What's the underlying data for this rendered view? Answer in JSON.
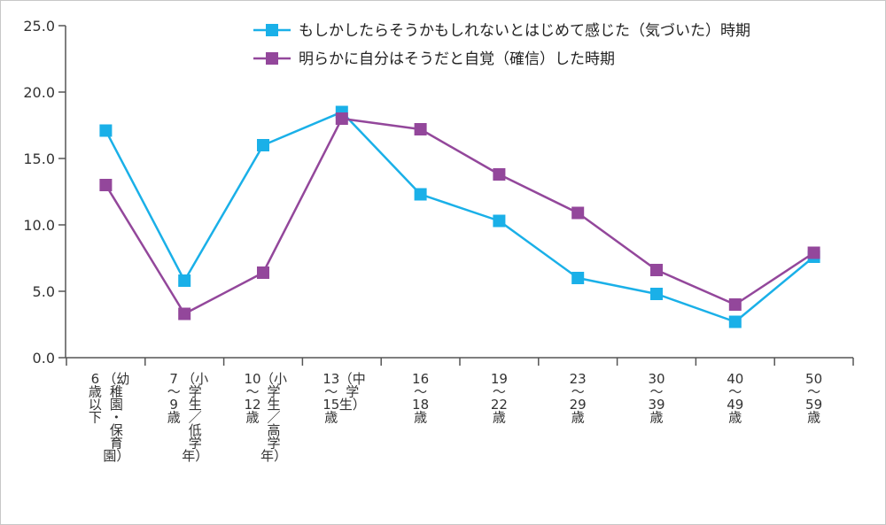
{
  "chart_data": {
    "type": "line",
    "title": "",
    "xlabel": "",
    "ylabel": "",
    "ylim": [
      0,
      25
    ],
    "yticks": [
      "0.0",
      "5.0",
      "10.0",
      "15.0",
      "20.0",
      "25.0"
    ],
    "ytick_values": [
      0,
      5,
      10,
      15,
      20,
      25
    ],
    "grid": false,
    "legend_position": "top-right",
    "categories": [
      "6歳以下（幼稚園・保育園）",
      "7〜9歳（小学生／低学年）",
      "10〜12歳（小学生／高学年）",
      "13〜15歳（中学生）",
      "16〜18歳",
      "19〜22歳",
      "23〜29歳",
      "30〜39歳",
      "40〜49歳",
      "50〜59歳"
    ],
    "category_lines": [
      [
        "6",
        "歳",
        "以",
        "下",
        "（幼",
        "稚",
        "園",
        "・",
        "保",
        "育",
        "園）"
      ],
      [
        "7",
        "〜",
        "9",
        "歳",
        "（小",
        "学",
        "生",
        "／",
        "低",
        "学",
        "年）"
      ],
      [
        "10",
        "〜",
        "12",
        "歳",
        "（小",
        "学",
        "生",
        "／",
        "高",
        "学",
        "年）"
      ],
      [
        "13",
        "〜",
        "15",
        "歳",
        "（中",
        "学",
        "生）"
      ],
      [
        "16",
        "〜",
        "18",
        "歳"
      ],
      [
        "19",
        "〜",
        "22",
        "歳"
      ],
      [
        "23",
        "〜",
        "29",
        "歳"
      ],
      [
        "30",
        "〜",
        "39",
        "歳"
      ],
      [
        "40",
        "〜",
        "49",
        "歳"
      ],
      [
        "50",
        "〜",
        "59",
        "歳"
      ]
    ],
    "series": [
      {
        "name": "もしかしたらそうかもしれないとはじめて感じた（気づいた）時期",
        "color": "#1ab0e8",
        "values": [
          17.1,
          5.8,
          16.0,
          18.5,
          12.3,
          10.3,
          6.0,
          4.8,
          2.7,
          7.6
        ]
      },
      {
        "name": "明らかに自分はそうだと自覚（確信）した時期",
        "color": "#93479b",
        "values": [
          13.0,
          3.3,
          6.4,
          18.0,
          17.2,
          13.8,
          10.9,
          6.6,
          4.0,
          7.9
        ]
      }
    ]
  }
}
